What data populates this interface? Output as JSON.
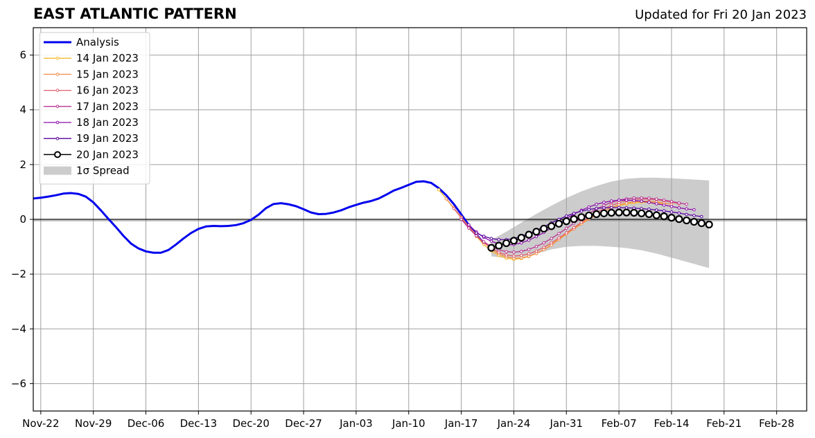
{
  "title": "EAST ATLANTIC PATTERN",
  "subtitle": "Updated for Fri 20 Jan 2023",
  "chart_data": {
    "type": "line",
    "title": "EAST ATLANTIC PATTERN",
    "subtitle": "Updated for Fri 20 Jan 2023",
    "xlabel": "",
    "ylabel": "",
    "xlim": [
      "2022-11-21",
      "2023-03-04"
    ],
    "ylim": [
      -7,
      7
    ],
    "x_ticks": [
      "Nov-22",
      "Nov-29",
      "Dec-06",
      "Dec-13",
      "Dec-20",
      "Dec-27",
      "Jan-03",
      "Jan-10",
      "Jan-17",
      "Jan-24",
      "Jan-31",
      "Feb-07",
      "Feb-14",
      "Feb-21",
      "Feb-28"
    ],
    "x_tick_dates": [
      "2022-11-22",
      "2022-11-29",
      "2022-12-06",
      "2022-12-13",
      "2022-12-20",
      "2022-12-27",
      "2023-01-03",
      "2023-01-10",
      "2023-01-17",
      "2023-01-24",
      "2023-01-31",
      "2023-02-07",
      "2023-02-14",
      "2023-02-21",
      "2023-02-28"
    ],
    "y_ticks": [
      "6",
      "4",
      "2",
      "0",
      "−2",
      "−4",
      "−6"
    ],
    "y_tick_values": [
      6,
      4,
      2,
      0,
      -2,
      -4,
      -6
    ],
    "grid": true,
    "legend_position": "top-left",
    "series": [
      {
        "name": "Analysis",
        "color": "#0000ee",
        "x": [
          "2022-11-21",
          "2022-11-22",
          "2022-11-23",
          "2022-11-24",
          "2022-11-25",
          "2022-11-26",
          "2022-11-27",
          "2022-11-28",
          "2022-11-29",
          "2022-11-30",
          "2022-12-01",
          "2022-12-02",
          "2022-12-03",
          "2022-12-04",
          "2022-12-05",
          "2022-12-06",
          "2022-12-07",
          "2022-12-08",
          "2022-12-09",
          "2022-12-10",
          "2022-12-11",
          "2022-12-12",
          "2022-12-13",
          "2022-12-14",
          "2022-12-15",
          "2022-12-16",
          "2022-12-17",
          "2022-12-18",
          "2022-12-19",
          "2022-12-20",
          "2022-12-21",
          "2022-12-22",
          "2022-12-23",
          "2022-12-24",
          "2022-12-25",
          "2022-12-26",
          "2022-12-27",
          "2022-12-28",
          "2022-12-29",
          "2022-12-30",
          "2022-12-31",
          "2023-01-01",
          "2023-01-02",
          "2023-01-03",
          "2023-01-04",
          "2023-01-05",
          "2023-01-06",
          "2023-01-07",
          "2023-01-08",
          "2023-01-09",
          "2023-01-10",
          "2023-01-11",
          "2023-01-12",
          "2023-01-13",
          "2023-01-14",
          "2023-01-15",
          "2023-01-16",
          "2023-01-17",
          "2023-01-18",
          "2023-01-19",
          "2023-01-20"
        ],
        "y": [
          0.76,
          0.79,
          0.83,
          0.88,
          0.94,
          0.96,
          0.93,
          0.83,
          0.62,
          0.33,
          0.02,
          -0.28,
          -0.6,
          -0.88,
          -1.06,
          -1.17,
          -1.22,
          -1.22,
          -1.12,
          -0.92,
          -0.7,
          -0.5,
          -0.35,
          -0.26,
          -0.24,
          -0.25,
          -0.24,
          -0.21,
          -0.14,
          -0.02,
          0.17,
          0.41,
          0.56,
          0.59,
          0.55,
          0.48,
          0.37,
          0.25,
          0.19,
          0.2,
          0.25,
          0.33,
          0.44,
          0.53,
          0.61,
          0.67,
          0.76,
          0.9,
          1.05,
          1.15,
          1.26,
          1.37,
          1.39,
          1.33,
          1.14,
          0.88,
          0.56,
          0.18,
          -0.21,
          -0.55,
          -0.87
        ]
      },
      {
        "name": "14 Jan 2023",
        "color": "#f5b82e",
        "x": [
          "2023-01-14",
          "2023-01-15",
          "2023-01-16",
          "2023-01-17",
          "2023-01-18",
          "2023-01-19",
          "2023-01-20",
          "2023-01-21",
          "2023-01-22",
          "2023-01-23",
          "2023-01-24",
          "2023-01-25",
          "2023-01-26",
          "2023-01-27",
          "2023-01-28",
          "2023-01-29",
          "2023-01-30",
          "2023-01-31",
          "2023-02-01",
          "2023-02-02",
          "2023-02-03",
          "2023-02-04",
          "2023-02-05",
          "2023-02-06",
          "2023-02-07",
          "2023-02-08",
          "2023-02-09",
          "2023-02-10",
          "2023-02-11",
          "2023-02-12",
          "2023-02-13"
        ],
        "y": [
          1.08,
          0.75,
          0.4,
          0.05,
          -0.3,
          -0.62,
          -0.92,
          -1.15,
          -1.32,
          -1.42,
          -1.46,
          -1.43,
          -1.36,
          -1.25,
          -1.1,
          -0.92,
          -0.72,
          -0.52,
          -0.32,
          -0.14,
          0.03,
          0.18,
          0.31,
          0.42,
          0.5,
          0.56,
          0.6,
          0.62,
          0.62,
          0.6,
          0.56
        ]
      },
      {
        "name": "15 Jan 2023",
        "color": "#f38b48",
        "x": [
          "2023-01-15",
          "2023-01-16",
          "2023-01-17",
          "2023-01-18",
          "2023-01-19",
          "2023-01-20",
          "2023-01-21",
          "2023-01-22",
          "2023-01-23",
          "2023-01-24",
          "2023-01-25",
          "2023-01-26",
          "2023-01-27",
          "2023-01-28",
          "2023-01-29",
          "2023-01-30",
          "2023-01-31",
          "2023-02-01",
          "2023-02-02",
          "2023-02-03",
          "2023-02-04",
          "2023-02-05",
          "2023-02-06",
          "2023-02-07",
          "2023-02-08",
          "2023-02-09",
          "2023-02-10",
          "2023-02-11",
          "2023-02-12",
          "2023-02-13",
          "2023-02-14"
        ],
        "y": [
          0.75,
          0.42,
          0.08,
          -0.26,
          -0.56,
          -0.84,
          -1.08,
          -1.26,
          -1.37,
          -1.42,
          -1.41,
          -1.35,
          -1.25,
          -1.11,
          -0.94,
          -0.74,
          -0.54,
          -0.35,
          -0.17,
          0.01,
          0.17,
          0.31,
          0.43,
          0.53,
          0.6,
          0.64,
          0.66,
          0.66,
          0.64,
          0.6,
          0.55
        ]
      },
      {
        "name": "16 Jan 2023",
        "color": "#e05c6e",
        "x": [
          "2023-01-16",
          "2023-01-17",
          "2023-01-18",
          "2023-01-19",
          "2023-01-20",
          "2023-01-21",
          "2023-01-22",
          "2023-01-23",
          "2023-01-24",
          "2023-01-25",
          "2023-01-26",
          "2023-01-27",
          "2023-01-28",
          "2023-01-29",
          "2023-01-30",
          "2023-01-31",
          "2023-02-01",
          "2023-02-02",
          "2023-02-03",
          "2023-02-04",
          "2023-02-05",
          "2023-02-06",
          "2023-02-07",
          "2023-02-08",
          "2023-02-09",
          "2023-02-10",
          "2023-02-11",
          "2023-02-12",
          "2023-02-13",
          "2023-02-14",
          "2023-02-15"
        ],
        "y": [
          0.4,
          0.05,
          -0.3,
          -0.6,
          -0.85,
          -1.05,
          -1.2,
          -1.3,
          -1.34,
          -1.32,
          -1.26,
          -1.16,
          -1.02,
          -0.86,
          -0.68,
          -0.49,
          -0.3,
          -0.11,
          0.07,
          0.24,
          0.39,
          0.51,
          0.61,
          0.68,
          0.72,
          0.74,
          0.74,
          0.72,
          0.68,
          0.63,
          0.57
        ]
      },
      {
        "name": "17 Jan 2023",
        "color": "#b8328f",
        "x": [
          "2023-01-17",
          "2023-01-18",
          "2023-01-19",
          "2023-01-20",
          "2023-01-21",
          "2023-01-22",
          "2023-01-23",
          "2023-01-24",
          "2023-01-25",
          "2023-01-26",
          "2023-01-27",
          "2023-01-28",
          "2023-01-29",
          "2023-01-30",
          "2023-01-31",
          "2023-02-01",
          "2023-02-02",
          "2023-02-03",
          "2023-02-04",
          "2023-02-05",
          "2023-02-06",
          "2023-02-07",
          "2023-02-08",
          "2023-02-09",
          "2023-02-10",
          "2023-02-11",
          "2023-02-12",
          "2023-02-13",
          "2023-02-14",
          "2023-02-15",
          "2023-02-16"
        ],
        "y": [
          0.0,
          -0.32,
          -0.6,
          -0.82,
          -0.99,
          -1.11,
          -1.18,
          -1.2,
          -1.17,
          -1.1,
          -0.99,
          -0.86,
          -0.7,
          -0.52,
          -0.33,
          -0.14,
          0.05,
          0.22,
          0.38,
          0.51,
          0.62,
          0.7,
          0.75,
          0.78,
          0.78,
          0.77,
          0.74,
          0.7,
          0.65,
          0.6,
          0.55
        ]
      },
      {
        "name": "18 Jan 2023",
        "color": "#8a0aa8",
        "x": [
          "2023-01-18",
          "2023-01-19",
          "2023-01-20",
          "2023-01-21",
          "2023-01-22",
          "2023-01-23",
          "2023-01-24",
          "2023-01-25",
          "2023-01-26",
          "2023-01-27",
          "2023-01-28",
          "2023-01-29",
          "2023-01-30",
          "2023-01-31",
          "2023-02-01",
          "2023-02-02",
          "2023-02-03",
          "2023-02-04",
          "2023-02-05",
          "2023-02-06",
          "2023-02-07",
          "2023-02-08",
          "2023-02-09",
          "2023-02-10",
          "2023-02-11",
          "2023-02-12",
          "2023-02-13",
          "2023-02-14",
          "2023-02-15",
          "2023-02-16",
          "2023-02-17"
        ],
        "y": [
          -0.2,
          -0.46,
          -0.66,
          -0.8,
          -0.9,
          -0.94,
          -0.92,
          -0.86,
          -0.76,
          -0.63,
          -0.48,
          -0.31,
          -0.14,
          0.03,
          0.19,
          0.33,
          0.45,
          0.55,
          0.62,
          0.67,
          0.7,
          0.7,
          0.69,
          0.66,
          0.62,
          0.57,
          0.52,
          0.47,
          0.42,
          0.38,
          0.35
        ]
      },
      {
        "name": "19 Jan 2023",
        "color": "#55009e",
        "x": [
          "2023-01-19",
          "2023-01-20",
          "2023-01-21",
          "2023-01-22",
          "2023-01-23",
          "2023-01-24",
          "2023-01-25",
          "2023-01-26",
          "2023-01-27",
          "2023-01-28",
          "2023-01-29",
          "2023-01-30",
          "2023-01-31",
          "2023-02-01",
          "2023-02-02",
          "2023-02-03",
          "2023-02-04",
          "2023-02-05",
          "2023-02-06",
          "2023-02-07",
          "2023-02-08",
          "2023-02-09",
          "2023-02-10",
          "2023-02-11",
          "2023-02-12",
          "2023-02-13",
          "2023-02-14",
          "2023-02-15",
          "2023-02-16",
          "2023-02-17",
          "2023-02-18"
        ],
        "y": [
          -0.5,
          -0.62,
          -0.7,
          -0.74,
          -0.74,
          -0.7,
          -0.62,
          -0.52,
          -0.4,
          -0.27,
          -0.13,
          0.0,
          0.12,
          0.22,
          0.3,
          0.36,
          0.4,
          0.42,
          0.43,
          0.43,
          0.42,
          0.41,
          0.39,
          0.37,
          0.34,
          0.31,
          0.27,
          0.23,
          0.18,
          0.14,
          0.1
        ]
      },
      {
        "name": "20 Jan 2023",
        "color": "#000000",
        "x": [
          "2023-01-21",
          "2023-01-22",
          "2023-01-23",
          "2023-01-24",
          "2023-01-25",
          "2023-01-26",
          "2023-01-27",
          "2023-01-28",
          "2023-01-29",
          "2023-01-30",
          "2023-01-31",
          "2023-02-01",
          "2023-02-02",
          "2023-02-03",
          "2023-02-04",
          "2023-02-05",
          "2023-02-06",
          "2023-02-07",
          "2023-02-08",
          "2023-02-09",
          "2023-02-10",
          "2023-02-11",
          "2023-02-12",
          "2023-02-13",
          "2023-02-14",
          "2023-02-15",
          "2023-02-16",
          "2023-02-17",
          "2023-02-18",
          "2023-02-19"
        ],
        "y": [
          -1.04,
          -0.96,
          -0.87,
          -0.78,
          -0.67,
          -0.56,
          -0.45,
          -0.34,
          -0.25,
          -0.16,
          -0.07,
          0.01,
          0.08,
          0.14,
          0.19,
          0.22,
          0.24,
          0.25,
          0.25,
          0.24,
          0.22,
          0.19,
          0.15,
          0.11,
          0.06,
          0.01,
          -0.04,
          -0.09,
          -0.14,
          -0.19
        ]
      }
    ],
    "spread": {
      "name": "1σ Spread",
      "color": "#cccccc",
      "x": [
        "2023-01-21",
        "2023-01-23",
        "2023-01-25",
        "2023-01-27",
        "2023-01-29",
        "2023-01-31",
        "2023-02-02",
        "2023-02-04",
        "2023-02-06",
        "2023-02-08",
        "2023-02-10",
        "2023-02-12",
        "2023-02-14",
        "2023-02-16",
        "2023-02-19"
      ],
      "upper": [
        -0.75,
        -0.45,
        -0.12,
        0.2,
        0.5,
        0.78,
        1.02,
        1.22,
        1.38,
        1.48,
        1.52,
        1.52,
        1.5,
        1.47,
        1.42
      ],
      "lower": [
        -1.35,
        -1.42,
        -1.38,
        -1.25,
        -1.1,
        -1.0,
        -0.97,
        -0.97,
        -1.0,
        -1.05,
        -1.13,
        -1.25,
        -1.4,
        -1.55,
        -1.78
      ]
    }
  }
}
